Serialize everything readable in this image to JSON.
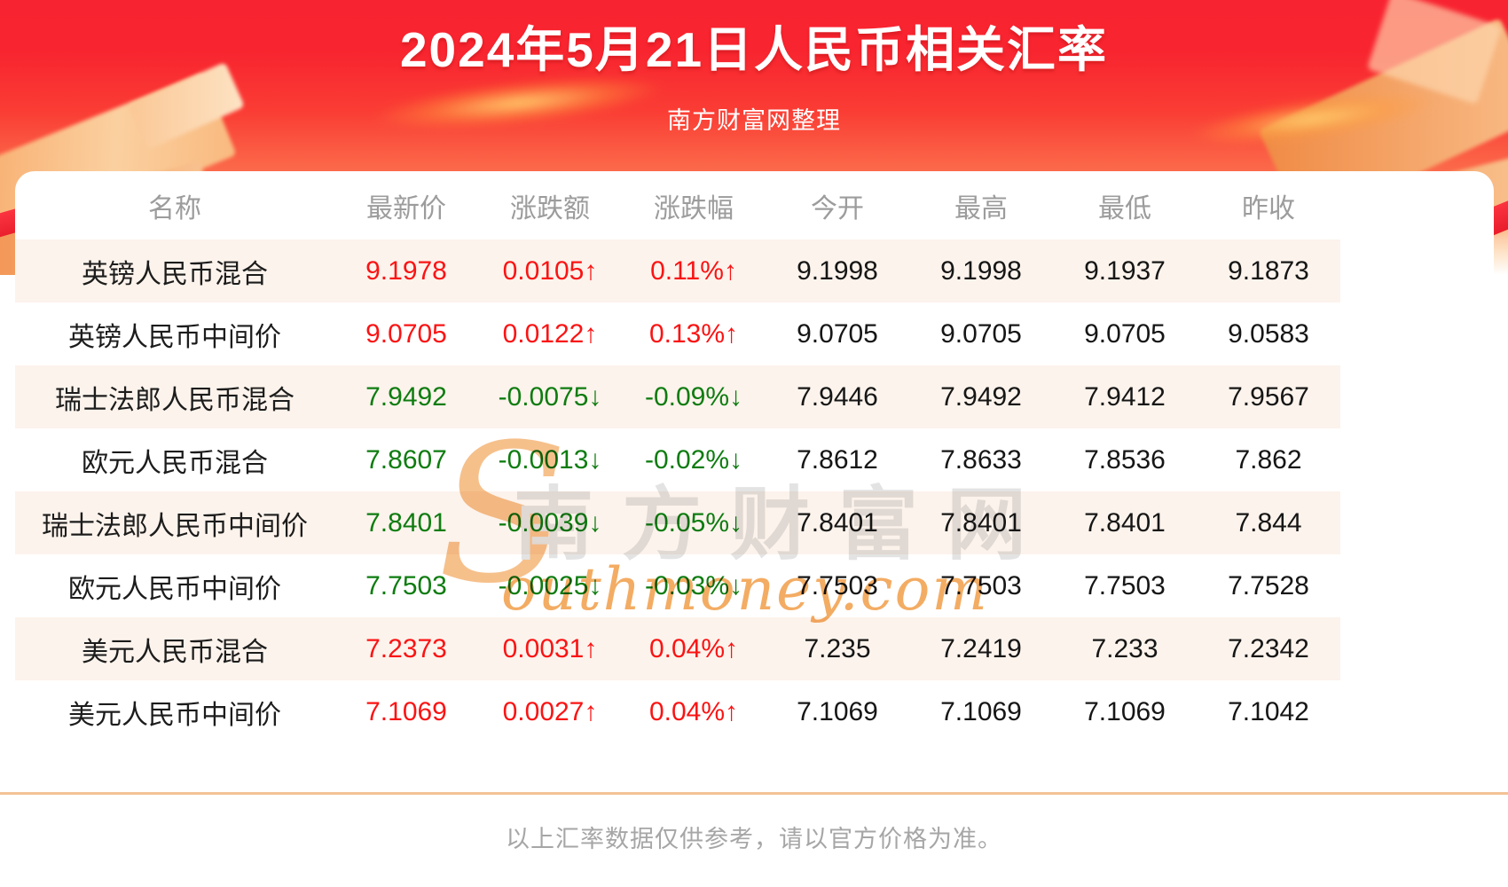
{
  "page": {
    "title": "2024年5月21日人民币相关汇率",
    "subtitle": "南方财富网整理",
    "footer_note": "以上汇率数据仅供参考，请以官方价格为准。"
  },
  "watermark": {
    "swoosh": "S",
    "cjk": "南方财富网",
    "latin": "outhmoney.com"
  },
  "ui": {
    "arrows": {
      "up": "↑",
      "down": "↓"
    }
  },
  "colors": {
    "banner_red": "#f82330",
    "row_alt_pink": "#fcf3ec",
    "up_red": "#fa1414",
    "down_green": "#0e7c10",
    "header_gray": "#9c9c9c",
    "divider_tan": "#f3c296"
  },
  "chart_data": {
    "type": "table",
    "title": "2024年5月21日人民币相关汇率",
    "source": "南方财富网整理",
    "columns": [
      "名称",
      "最新价",
      "涨跌额",
      "涨跌幅",
      "今开",
      "最高",
      "最低",
      "昨收"
    ],
    "rows": [
      {
        "name": "英镑人民币混合",
        "latest": "9.1978",
        "change": "0.0105",
        "change_pct": "0.11%",
        "direction": "up",
        "open": "9.1998",
        "high": "9.1998",
        "low": "9.1937",
        "prev_close": "9.1873"
      },
      {
        "name": "英镑人民币中间价",
        "latest": "9.0705",
        "change": "0.0122",
        "change_pct": "0.13%",
        "direction": "up",
        "open": "9.0705",
        "high": "9.0705",
        "low": "9.0705",
        "prev_close": "9.0583"
      },
      {
        "name": "瑞士法郎人民币混合",
        "latest": "7.9492",
        "change": "-0.0075",
        "change_pct": "-0.09%",
        "direction": "down",
        "open": "7.9446",
        "high": "7.9492",
        "low": "7.9412",
        "prev_close": "7.9567"
      },
      {
        "name": "欧元人民币混合",
        "latest": "7.8607",
        "change": "-0.0013",
        "change_pct": "-0.02%",
        "direction": "down",
        "open": "7.8612",
        "high": "7.8633",
        "low": "7.8536",
        "prev_close": "7.862"
      },
      {
        "name": "瑞士法郎人民币中间价",
        "latest": "7.8401",
        "change": "-0.0039",
        "change_pct": "-0.05%",
        "direction": "down",
        "open": "7.8401",
        "high": "7.8401",
        "low": "7.8401",
        "prev_close": "7.844"
      },
      {
        "name": "欧元人民币中间价",
        "latest": "7.7503",
        "change": "-0.0025",
        "change_pct": "-0.03%",
        "direction": "down",
        "open": "7.7503",
        "high": "7.7503",
        "low": "7.7503",
        "prev_close": "7.7528"
      },
      {
        "name": "美元人民币混合",
        "latest": "7.2373",
        "change": "0.0031",
        "change_pct": "0.04%",
        "direction": "up",
        "open": "7.235",
        "high": "7.2419",
        "low": "7.233",
        "prev_close": "7.2342"
      },
      {
        "name": "美元人民币中间价",
        "latest": "7.1069",
        "change": "0.0027",
        "change_pct": "0.04%",
        "direction": "up",
        "open": "7.1069",
        "high": "7.1069",
        "low": "7.1069",
        "prev_close": "7.1042"
      }
    ]
  }
}
